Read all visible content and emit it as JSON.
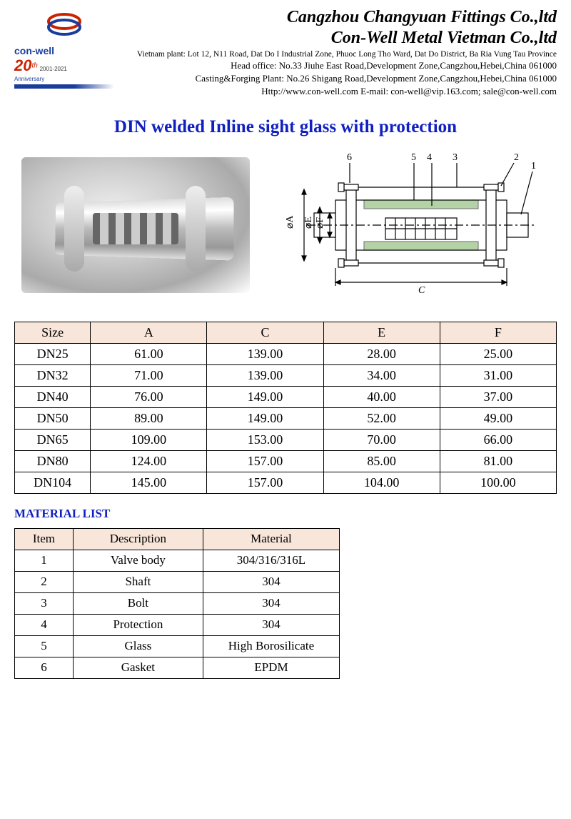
{
  "header": {
    "logo_text": "con-well",
    "anniversary_num": "20",
    "anniversary_th": "th",
    "anniversary_years": "2001-2021",
    "anniversary_label": "Anniversary",
    "company1": "Cangzhou Changyuan Fittings Co.,ltd",
    "company2": "Con-Well Metal Vietman Co.,ltd",
    "addr_vietnam": "Vietnam plant: Lot 12, N11 Road, Dat Do I Industrial Zone, Phuoc Long Tho Ward, Dat Do District,  Ba Ria Vung Tau Province",
    "addr_head": "Head office: No.33 Jiuhe East Road,Development Zone,Cangzhou,Hebei,China  061000",
    "addr_casting": "Casting&Forging Plant: No.26 Shigang Road,Development Zone,Cangzhou,Hebei,China  061000",
    "addr_contact": "Http://www.con-well.com      E-mail: con-well@vip.163.com; sale@con-well.com"
  },
  "title": "DIN welded Inline sight glass with protection",
  "diagram": {
    "callouts": [
      "6",
      "5",
      "4",
      "3",
      "2",
      "1"
    ],
    "dim_labels": {
      "A": "⌀A",
      "E": "⌀E",
      "F": "⌀F",
      "C": "C"
    },
    "stroke": "#000000",
    "hatch_color": "#6aa84f",
    "line_width": 1.2,
    "font_size": 14
  },
  "dim_table": {
    "columns": [
      "Size",
      "A",
      "C",
      "E",
      "F"
    ],
    "rows": [
      [
        "DN25",
        "61.00",
        "139.00",
        "28.00",
        "25.00"
      ],
      [
        "DN32",
        "71.00",
        "139.00",
        "34.00",
        "31.00"
      ],
      [
        "DN40",
        "76.00",
        "149.00",
        "40.00",
        "37.00"
      ],
      [
        "DN50",
        "89.00",
        "149.00",
        "52.00",
        "49.00"
      ],
      [
        "DN65",
        "109.00",
        "153.00",
        "70.00",
        "66.00"
      ],
      [
        "DN80",
        "124.00",
        "157.00",
        "85.00",
        "81.00"
      ],
      [
        "DN104",
        "145.00",
        "157.00",
        "104.00",
        "100.00"
      ]
    ],
    "header_bg": "#f7e6d9",
    "border_color": "#000000",
    "font_size": 18
  },
  "material_heading": "MATERIAL LIST",
  "mat_table": {
    "columns": [
      "Item",
      "Description",
      "Material"
    ],
    "rows": [
      [
        "1",
        "Valve body",
        "304/316/316L"
      ],
      [
        "2",
        "Shaft",
        "304"
      ],
      [
        "3",
        "Bolt",
        "304"
      ],
      [
        "4",
        "Protection",
        "304"
      ],
      [
        "5",
        "Glass",
        "High Borosilicate"
      ],
      [
        "6",
        "Gasket",
        "EPDM"
      ]
    ],
    "header_bg": "#f7e6d9",
    "border_color": "#000000",
    "font_size": 17
  }
}
